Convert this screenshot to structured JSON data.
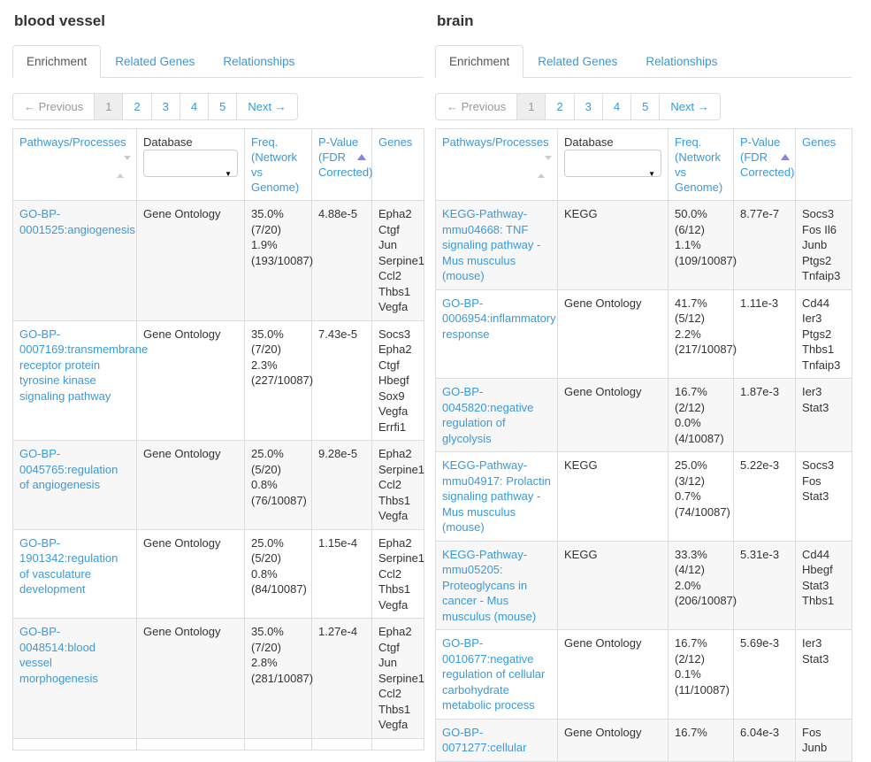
{
  "colors": {
    "link": "#3a99d8",
    "sort_arrow": "#8585dc",
    "border": "#dddddd",
    "stripe": "#f7f7f7",
    "active_page_bg": "#eeeeee",
    "muted_text": "#999999"
  },
  "panels": [
    {
      "title": "blood vessel",
      "tabs": [
        {
          "label": "Enrichment",
          "active": true
        },
        {
          "label": "Related Genes",
          "active": false
        },
        {
          "label": "Relationships",
          "active": false
        }
      ],
      "pagination": {
        "prev": "← Previous",
        "pages": [
          "1",
          "2",
          "3",
          "4",
          "5"
        ],
        "current": "1",
        "next": "Next →"
      },
      "table": {
        "headers": {
          "pathways": "Pathways/Processes",
          "database": "Database",
          "freq": "Freq.\n(Network vs\nGenome)",
          "pvalue": "P-Value\n(FDR\nCorrected)",
          "genes": "Genes"
        },
        "rows": [
          {
            "pathway": "GO-BP-0001525:angiogenesis",
            "database": "Gene Ontology",
            "freq": "35.0%\n(7/20)\n1.9%\n(193/10087)",
            "pvalue": "4.88e-5",
            "genes": "Epha2 Ctgf Jun Serpine1 Ccl2 Thbs1 Vegfa"
          },
          {
            "pathway": "GO-BP-0007169:transmembrane receptor protein tyrosine kinase signaling pathway",
            "database": "Gene Ontology",
            "freq": "35.0%\n(7/20)\n2.3%\n(227/10087)",
            "pvalue": "7.43e-5",
            "genes": "Socs3 Epha2 Ctgf Hbegf Sox9 Vegfa Errfi1"
          },
          {
            "pathway": "GO-BP-0045765:regulation of angiogenesis",
            "database": "Gene Ontology",
            "freq": "25.0%\n(5/20)\n0.8%\n(76/10087)",
            "pvalue": "9.28e-5",
            "genes": "Epha2 Serpine1 Ccl2 Thbs1 Vegfa"
          },
          {
            "pathway": "GO-BP-1901342:regulation of vasculature development",
            "database": "Gene Ontology",
            "freq": "25.0%\n(5/20)\n0.8%\n(84/10087)",
            "pvalue": "1.15e-4",
            "genes": "Epha2 Serpine1 Ccl2 Thbs1 Vegfa"
          },
          {
            "pathway": "GO-BP-0048514:blood vessel morphogenesis",
            "database": "Gene Ontology",
            "freq": "35.0%\n(7/20)\n2.8%\n(281/10087)",
            "pvalue": "1.27e-4",
            "genes": "Epha2 Ctgf Jun Serpine1 Ccl2 Thbs1 Vegfa"
          },
          {
            "pathway": "",
            "database": "",
            "freq": "",
            "pvalue": "",
            "genes": ""
          }
        ]
      }
    },
    {
      "title": "brain",
      "tabs": [
        {
          "label": "Enrichment",
          "active": true
        },
        {
          "label": "Related Genes",
          "active": false
        },
        {
          "label": "Relationships",
          "active": false
        }
      ],
      "pagination": {
        "prev": "← Previous",
        "pages": [
          "1",
          "2",
          "3",
          "4",
          "5"
        ],
        "current": "1",
        "next": "Next →"
      },
      "table": {
        "headers": {
          "pathways": "Pathways/Processes",
          "database": "Database",
          "freq": "Freq.\n(Network vs\nGenome)",
          "pvalue": "P-Value\n(FDR\nCorrected)",
          "genes": "Genes"
        },
        "rows": [
          {
            "pathway": "KEGG-Pathway-mmu04668: TNF signaling pathway - Mus musculus (mouse)",
            "database": "KEGG",
            "freq": "50.0%\n(6/12)\n1.1%\n(109/10087)",
            "pvalue": "8.77e-7",
            "genes": "Socs3 Fos Il6 Junb Ptgs2 Tnfaip3"
          },
          {
            "pathway": "GO-BP-0006954:inflammatory response",
            "database": "Gene Ontology",
            "freq": "41.7%\n(5/12)\n2.2%\n(217/10087)",
            "pvalue": "1.11e-3",
            "genes": "Cd44 Ier3 Ptgs2 Thbs1 Tnfaip3"
          },
          {
            "pathway": "GO-BP-0045820:negative regulation of glycolysis",
            "database": "Gene Ontology",
            "freq": "16.7%\n(2/12)\n0.0%\n(4/10087)",
            "pvalue": "1.87e-3",
            "genes": "Ier3 Stat3"
          },
          {
            "pathway": "KEGG-Pathway-mmu04917: Prolactin signaling pathway - Mus musculus (mouse)",
            "database": "KEGG",
            "freq": "25.0%\n(3/12)\n0.7%\n(74/10087)",
            "pvalue": "5.22e-3",
            "genes": "Socs3 Fos Stat3"
          },
          {
            "pathway": "KEGG-Pathway-mmu05205: Proteoglycans in cancer - Mus musculus (mouse)",
            "database": "KEGG",
            "freq": "33.3%\n(4/12)\n2.0%\n(206/10087)",
            "pvalue": "5.31e-3",
            "genes": "Cd44 Hbegf Stat3 Thbs1"
          },
          {
            "pathway": "GO-BP-0010677:negative regulation of cellular carbohydrate metabolic process",
            "database": "Gene Ontology",
            "freq": "16.7%\n(2/12)\n0.1%\n(11/10087)",
            "pvalue": "5.69e-3",
            "genes": "Ier3 Stat3"
          },
          {
            "pathway": "GO-BP-0071277:cellular",
            "database": "Gene Ontology",
            "freq": "16.7%",
            "pvalue": "6.04e-3",
            "genes": "Fos Junb"
          }
        ]
      }
    }
  ]
}
